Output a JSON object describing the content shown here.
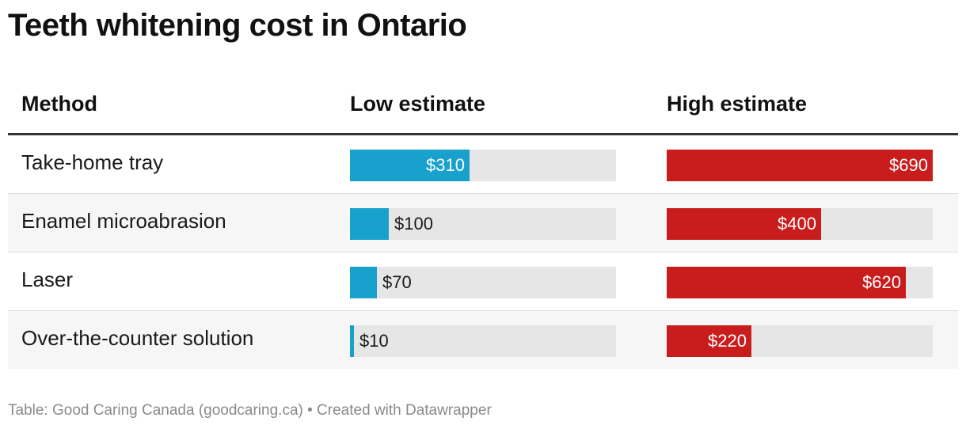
{
  "title": "Teeth whitening cost in Ontario",
  "footer": "Table: Good Caring Canada (goodcaring.ca) • Created with Datawrapper",
  "colors": {
    "low": "#18a1cd",
    "high": "#c91d1d",
    "track": "#e6e6e6"
  },
  "chart_data": {
    "type": "table",
    "title": "Teeth whitening cost in Ontario",
    "columns": [
      "Method",
      "Low estimate",
      "High estimate"
    ],
    "scale_max": 690,
    "rows": [
      {
        "method": "Take-home tray",
        "low": 310,
        "low_label": "$310",
        "high": 690,
        "high_label": "$690"
      },
      {
        "method": "Enamel microabrasion",
        "low": 100,
        "low_label": "$100",
        "high": 400,
        "high_label": "$400"
      },
      {
        "method": "Laser",
        "low": 70,
        "low_label": "$70",
        "high": 620,
        "high_label": "$620"
      },
      {
        "method": "Over-the-counter solution",
        "low": 10,
        "low_label": "$10",
        "high": 220,
        "high_label": "$220"
      }
    ]
  }
}
